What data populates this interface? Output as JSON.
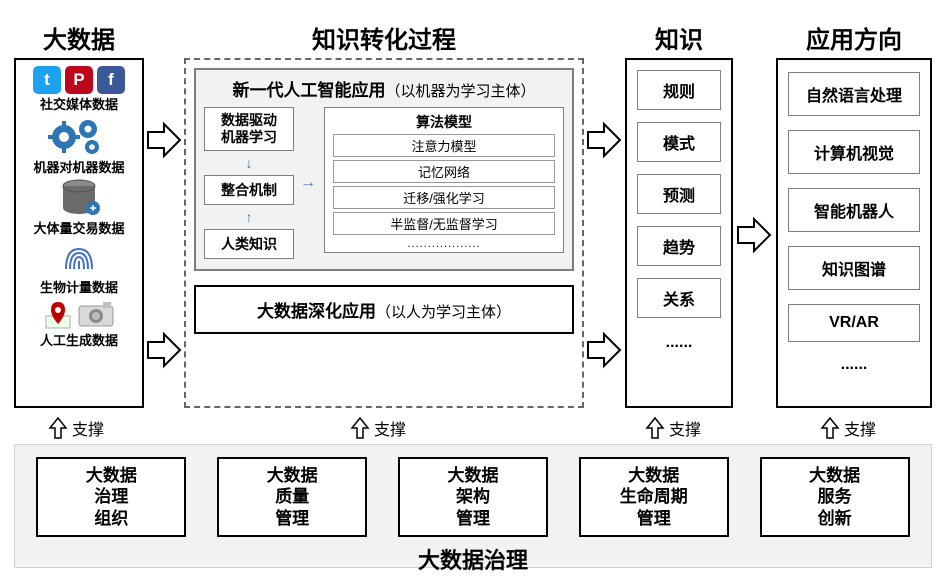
{
  "type": "flowchart",
  "background_color": "#ffffff",
  "border_color_black": "#000000",
  "border_color_gray": "#7f7f7f",
  "panel_bg_gray": "#f2f2f2",
  "arrow_fill": "#ffffff",
  "arrow_stroke": "#000000",
  "icon_colors": {
    "twitter": "#1da1f2",
    "pinterest": "#bd081c",
    "facebook": "#3b5998",
    "gear": "#2e75b6",
    "db_body": "#6b6b6b",
    "db_accent": "#2e75b6",
    "bio": "#4472c4",
    "pin": "#c00000",
    "camera": "#bfbfbf"
  },
  "headers": {
    "col1": "大数据",
    "col2": "知识转化过程",
    "col3": "知识",
    "col4": "应用方向"
  },
  "col1": {
    "items": [
      {
        "label": "社交媒体数据"
      },
      {
        "label": "机器对机器数据"
      },
      {
        "label": "大体量交易数据"
      },
      {
        "label": "生物计量数据"
      },
      {
        "label": "人工生成数据"
      }
    ],
    "social_glyphs": {
      "twitter": "t",
      "pinterest": "P",
      "facebook": "f"
    }
  },
  "col2": {
    "top_title": "新一代人工智能应用",
    "top_sub": "（以机器为学习主体）",
    "left_boxes": [
      "数据驱动\n机器学习",
      "整合机制",
      "人类知识"
    ],
    "algo_title": "算法模型",
    "algo_items": [
      "注意力模型",
      "记忆网络",
      "迁移/强化学习",
      "半监督/无监督学习"
    ],
    "algo_dots": "..................",
    "bottom_title": "大数据深化应用",
    "bottom_sub": "（以人为学习主体）"
  },
  "col3": {
    "items": [
      "规则",
      "模式",
      "预测",
      "趋势",
      "关系"
    ],
    "dots": "......"
  },
  "col4": {
    "items": [
      "自然语言处理",
      "计算机视觉",
      "智能机器人",
      "知识图谱",
      "VR/AR"
    ],
    "dots": "......"
  },
  "support_label": "支撑",
  "governance": {
    "boxes": [
      "大数据\n治理\n组织",
      "大数据\n质量\n管理",
      "大数据\n架构\n管理",
      "大数据\n生命周期\n管理",
      "大数据\n服务\n创新"
    ],
    "title": "大数据治理"
  }
}
